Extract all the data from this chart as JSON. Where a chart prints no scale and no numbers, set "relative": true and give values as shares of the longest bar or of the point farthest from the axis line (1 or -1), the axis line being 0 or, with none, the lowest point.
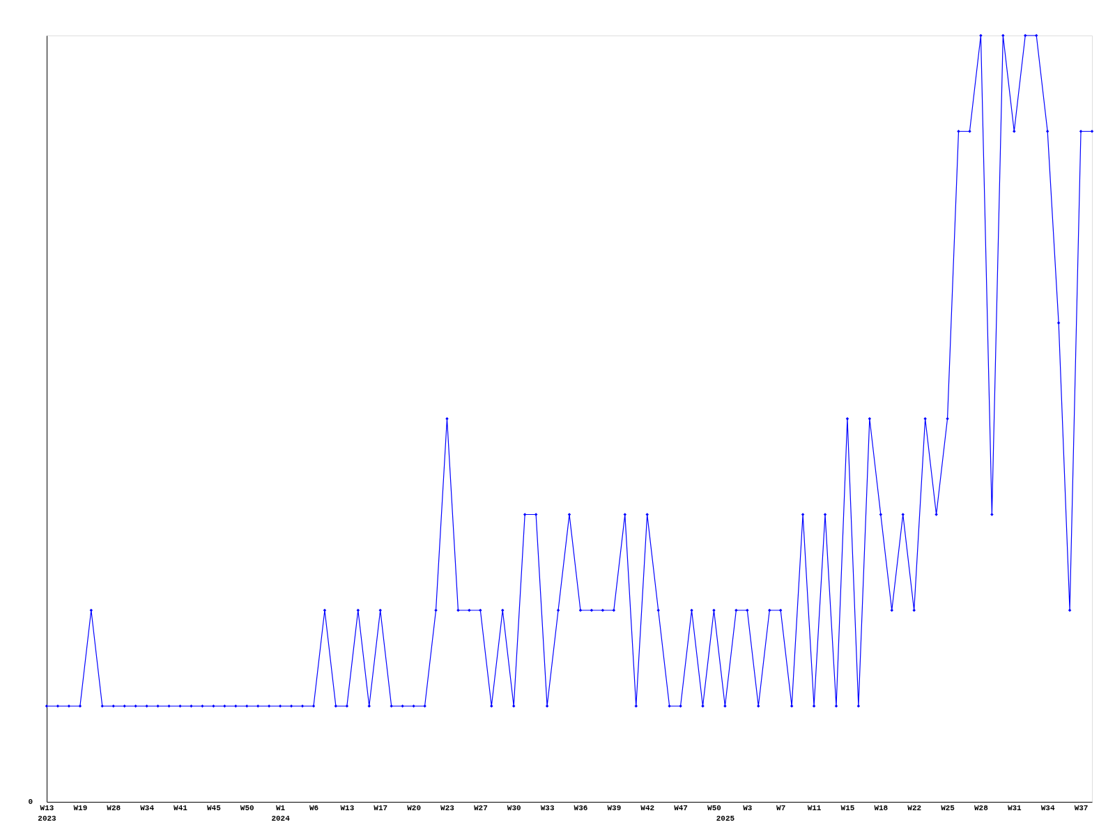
{
  "chart_data": {
    "type": "line",
    "relative": true,
    "marker": "diamond",
    "line_style": "solid",
    "grid": false,
    "categories": [
      "W13\n2023",
      null,
      null,
      "W19",
      null,
      null,
      "W28",
      null,
      null,
      "W34",
      null,
      null,
      "W41",
      null,
      null,
      "W45",
      null,
      null,
      "W50",
      null,
      null,
      "W1\n2024",
      null,
      null,
      "W6",
      null,
      null,
      "W13",
      null,
      null,
      "W17",
      null,
      null,
      "W20",
      null,
      null,
      "W23",
      null,
      null,
      "W27",
      null,
      null,
      "W30",
      null,
      null,
      "W33",
      null,
      null,
      "W36",
      null,
      null,
      "W39",
      null,
      null,
      "W42",
      null,
      null,
      "W47",
      null,
      null,
      "W50",
      "\n2025",
      null,
      "W3",
      null,
      null,
      "W7",
      null,
      null,
      "W11",
      null,
      null,
      "W15",
      null,
      null,
      "W18",
      null,
      null,
      "W22",
      null,
      null,
      "W25",
      null,
      null,
      "W28",
      null,
      null,
      "W31",
      null,
      null,
      "W34",
      null,
      null,
      "W37",
      null
    ],
    "series": [
      {
        "color": "#0000ff",
        "values": [
          0.125,
          0.125,
          0.125,
          0.125,
          0.25,
          0.125,
          0.125,
          0.125,
          0.125,
          0.125,
          0.125,
          0.125,
          0.125,
          0.125,
          0.125,
          0.125,
          0.125,
          0.125,
          0.125,
          0.125,
          0.125,
          0.125,
          0.125,
          0.125,
          0.125,
          0.25,
          0.125,
          0.125,
          0.25,
          0.125,
          0.25,
          0.125,
          0.125,
          0.125,
          0.125,
          0.25,
          0.5,
          0.25,
          0.25,
          0.25,
          0.125,
          0.25,
          0.125,
          0.375,
          0.375,
          0.125,
          0.25,
          0.375,
          0.25,
          0.25,
          0.25,
          0.25,
          0.375,
          0.125,
          0.375,
          0.25,
          0.125,
          0.125,
          0.25,
          0.125,
          0.25,
          0.125,
          0.25,
          0.25,
          0.125,
          0.25,
          0.25,
          0.125,
          0.375,
          0.125,
          0.375,
          0.125,
          0.5,
          0.125,
          0.5,
          0.375,
          0.25,
          0.375,
          0.25,
          0.5,
          0.375,
          0.5,
          0.875,
          0.875,
          1,
          0.375,
          1,
          0.875,
          1,
          1,
          0.875,
          0.625,
          0.25,
          0.875,
          0.875
        ]
      }
    ],
    "annotations": [
      "0"
    ]
  }
}
